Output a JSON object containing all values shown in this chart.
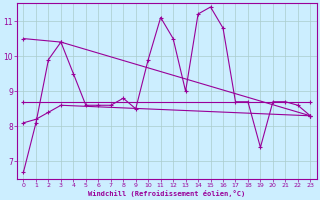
{
  "xlabel": "Windchill (Refroidissement éolien,°C)",
  "background_color": "#cceeff",
  "grid_color": "#aacccc",
  "line_color": "#990099",
  "xlim": [
    -0.5,
    23.5
  ],
  "ylim": [
    6.5,
    11.5
  ],
  "yticks": [
    7,
    8,
    9,
    10,
    11
  ],
  "xticks": [
    0,
    1,
    2,
    3,
    4,
    5,
    6,
    7,
    8,
    9,
    10,
    11,
    12,
    13,
    14,
    15,
    16,
    17,
    18,
    19,
    20,
    21,
    22,
    23
  ],
  "series": {
    "line1": {
      "x": [
        0,
        1,
        2,
        3,
        4,
        5,
        6,
        7,
        8,
        9,
        10,
        11,
        12,
        13,
        14,
        15,
        16,
        17,
        18,
        19,
        20,
        21,
        22,
        23
      ],
      "y": [
        6.7,
        8.1,
        9.9,
        10.4,
        9.5,
        8.6,
        8.6,
        8.6,
        8.8,
        8.5,
        9.9,
        11.1,
        10.5,
        9.0,
        11.2,
        11.4,
        10.8,
        8.7,
        8.7,
        7.4,
        8.7,
        8.7,
        8.6,
        8.3
      ]
    },
    "line2": {
      "x": [
        0,
        23
      ],
      "y": [
        8.7,
        8.7
      ]
    },
    "line3": {
      "x": [
        0,
        1,
        2,
        3,
        23
      ],
      "y": [
        8.1,
        8.2,
        8.4,
        8.6,
        8.3
      ]
    },
    "line4": {
      "x": [
        0,
        3,
        23
      ],
      "y": [
        10.5,
        10.4,
        8.3
      ]
    }
  }
}
